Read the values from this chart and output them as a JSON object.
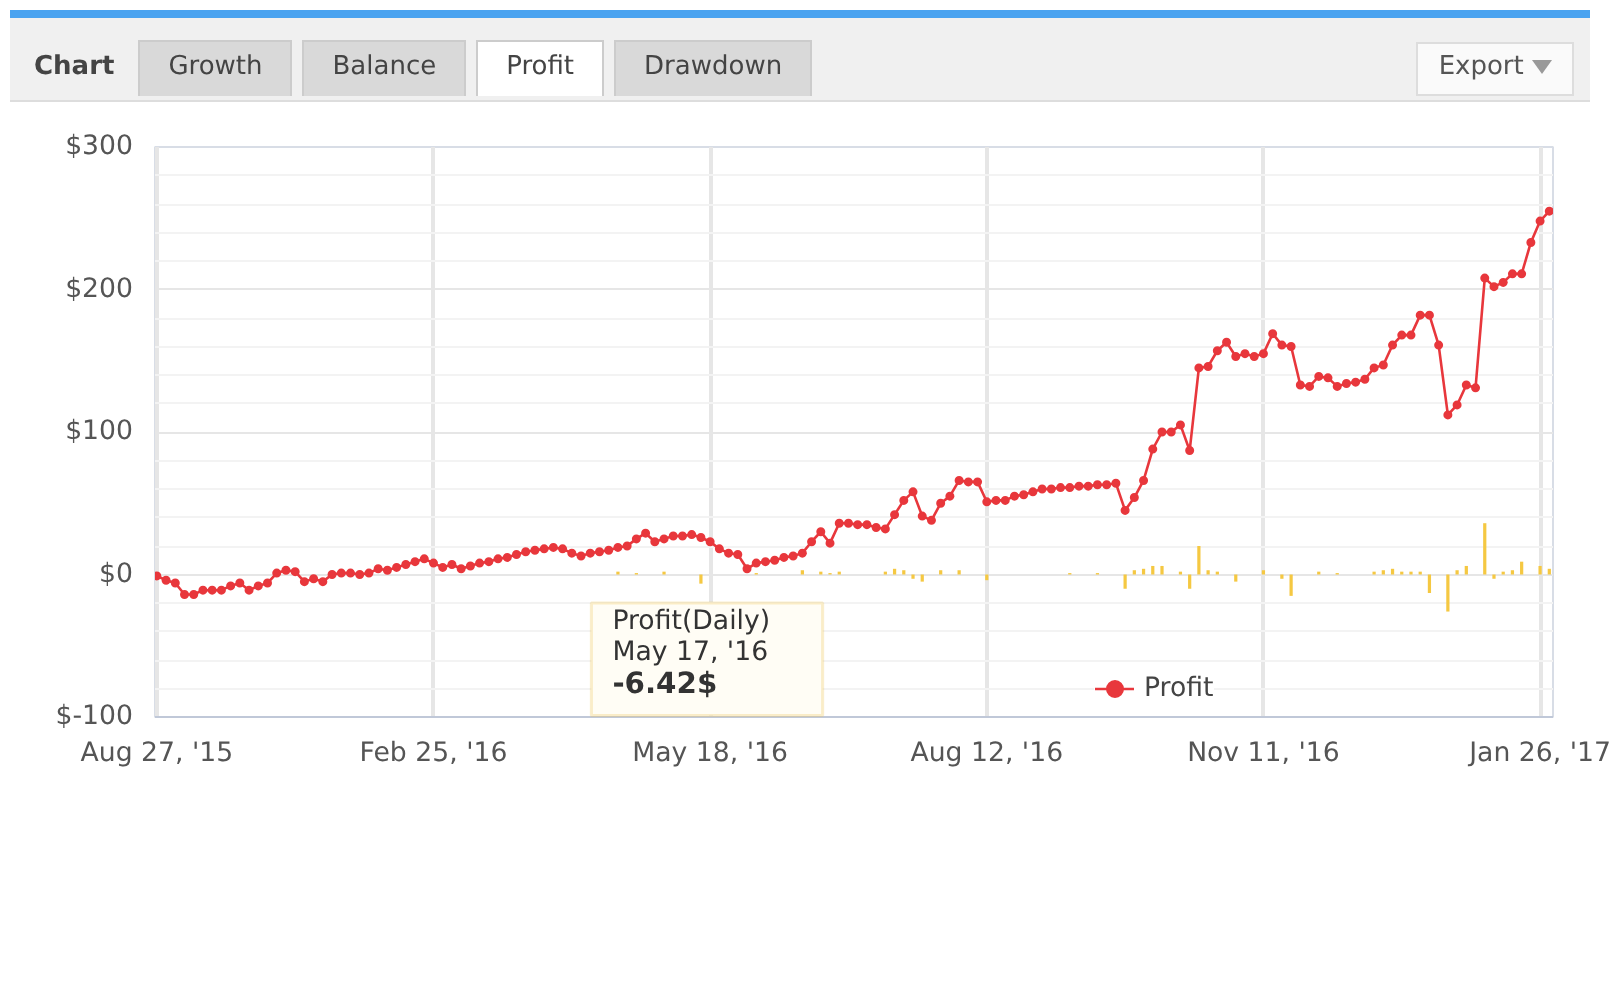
{
  "chart_data": {
    "type": "line",
    "categories": [
      "Aug 27, '15",
      null,
      null,
      null,
      null,
      null,
      null,
      null,
      null,
      null,
      null,
      null,
      null,
      null,
      null,
      null,
      null,
      null,
      null,
      null,
      null,
      null,
      null,
      null,
      null,
      null,
      null,
      null,
      null,
      null,
      "Feb 25, '16",
      null,
      null,
      null,
      null,
      null,
      null,
      null,
      null,
      null,
      null,
      null,
      null,
      null,
      null,
      null,
      null,
      null,
      null,
      null,
      null,
      null,
      null,
      null,
      null,
      null,
      null,
      null,
      null,
      null,
      "May 18, '16",
      null,
      null,
      null,
      null,
      null,
      null,
      null,
      null,
      null,
      null,
      null,
      null,
      null,
      null,
      null,
      null,
      null,
      null,
      null,
      null,
      null,
      null,
      null,
      null,
      null,
      null,
      null,
      null,
      null,
      "Aug 12, '16",
      null,
      null,
      null,
      null,
      null,
      null,
      null,
      null,
      null,
      null,
      null,
      null,
      null,
      null,
      null,
      null,
      null,
      null,
      null,
      null,
      null,
      null,
      null,
      null,
      null,
      null,
      null,
      null,
      null,
      "Nov 11, '16",
      null,
      null,
      null,
      null,
      null,
      null,
      null,
      null,
      null,
      null,
      null,
      null,
      null,
      null,
      null,
      null,
      null,
      null,
      null,
      null,
      null,
      null,
      null,
      null,
      null,
      null,
      null,
      null,
      null,
      "Jan 26, '17",
      null
    ],
    "series": [
      {
        "name": "Profit",
        "color": "#e8373c",
        "values": [
          -1,
          -4,
          -6,
          -14,
          -14,
          -11,
          -11,
          -11,
          -8,
          -6,
          -11,
          -8,
          -6,
          1,
          3,
          2,
          -5,
          -3,
          -5,
          0,
          1,
          1,
          0,
          1,
          4,
          3,
          5,
          7,
          9,
          11,
          8,
          5,
          7,
          4,
          6,
          8,
          9,
          11,
          12,
          14,
          16,
          17,
          18,
          19,
          18,
          15,
          13,
          15,
          16,
          17,
          19,
          20,
          25,
          29,
          23,
          25,
          27,
          27,
          28,
          26,
          23,
          18,
          15,
          14,
          4,
          8,
          9,
          10,
          12,
          13,
          15,
          23,
          30,
          22,
          36,
          36,
          35,
          35,
          33,
          32,
          42,
          52,
          58,
          41,
          38,
          50,
          55,
          66,
          65,
          65,
          51,
          52,
          52,
          55,
          56,
          58,
          60,
          60,
          61,
          61,
          62,
          62,
          63,
          63,
          64,
          45,
          54,
          66,
          88,
          100,
          100,
          105,
          87,
          145,
          146,
          157,
          163,
          153,
          155,
          153,
          155,
          169,
          161,
          160,
          133,
          132,
          139,
          138,
          132,
          134,
          135,
          137,
          145,
          147,
          161,
          168,
          168,
          182,
          182,
          161,
          112,
          119,
          133,
          131,
          208,
          202,
          205,
          211,
          211,
          233,
          248,
          255
        ]
      },
      {
        "type": "bar",
        "color": "#f5c842",
        "values": [
          null,
          null,
          null,
          null,
          null,
          null,
          null,
          null,
          null,
          null,
          null,
          null,
          null,
          null,
          null,
          null,
          null,
          null,
          null,
          null,
          null,
          null,
          null,
          null,
          null,
          null,
          null,
          null,
          null,
          null,
          null,
          null,
          null,
          null,
          null,
          null,
          null,
          null,
          null,
          null,
          null,
          null,
          null,
          null,
          null,
          null,
          null,
          null,
          null,
          null,
          2,
          null,
          1,
          null,
          null,
          2,
          null,
          null,
          null,
          -6.42,
          null,
          null,
          null,
          null,
          null,
          1,
          null,
          null,
          null,
          null,
          3,
          null,
          2,
          1,
          2,
          null,
          null,
          null,
          null,
          2,
          4,
          3,
          -3,
          -5,
          null,
          3,
          null,
          3,
          null,
          null,
          -4,
          null,
          null,
          null,
          null,
          null,
          null,
          null,
          null,
          1,
          null,
          null,
          1,
          null,
          null,
          -10,
          3,
          4,
          6,
          6,
          null,
          2,
          -10,
          20,
          3,
          2,
          null,
          -5,
          null,
          null,
          3,
          null,
          -3,
          -15,
          null,
          null,
          2,
          null,
          1,
          null,
          null,
          null,
          2,
          3,
          4,
          2,
          2,
          2,
          -13,
          null,
          -26,
          3,
          6,
          null,
          36,
          -3,
          2,
          3,
          9,
          null,
          6,
          4
        ]
      }
    ],
    "ylim": [
      -100,
      300
    ],
    "yticks": [
      {
        "value": -100,
        "label": "$-100"
      },
      {
        "value": 0,
        "label": "$0"
      },
      {
        "value": 100,
        "label": "$100"
      },
      {
        "value": 200,
        "label": "$200"
      },
      {
        "value": 300,
        "label": "$300"
      }
    ],
    "grid": true,
    "legend": "bottom",
    "marker": "circle",
    "line_style": "solid",
    "annotations": [
      "Chart",
      "Growth",
      "Balance",
      "Profit",
      "Drawdown",
      "Export",
      "Profit(Daily)",
      "May 17, '16",
      "-6.42$"
    ]
  }
}
